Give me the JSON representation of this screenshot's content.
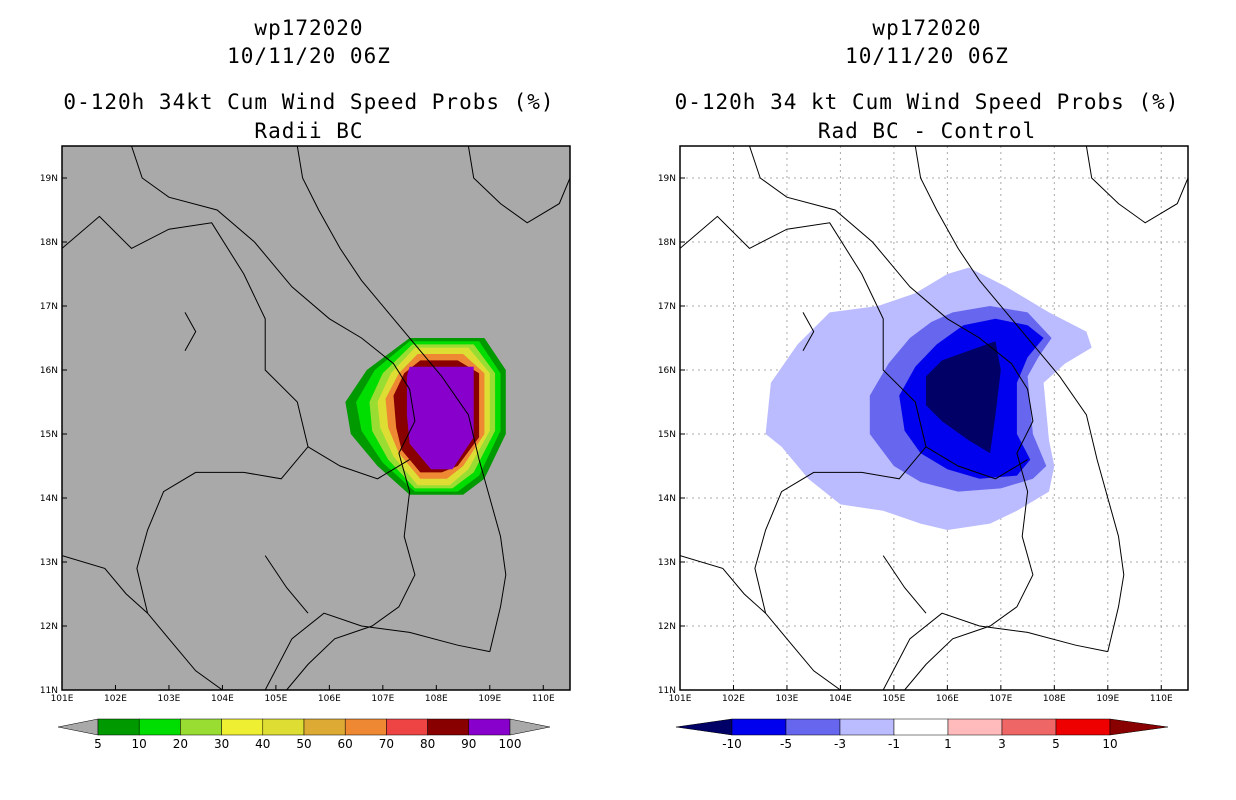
{
  "panels": [
    {
      "storm": "wp172020",
      "datetime": "10/11/20 06Z",
      "title": "0-120h 34kt Cum Wind Speed Probs (%)",
      "subtitle": "Radii BC",
      "background": "#a9a9a9",
      "lon_labels": [
        "101E",
        "102E",
        "103E",
        "104E",
        "105E",
        "106E",
        "107E",
        "108E",
        "109E",
        "110E"
      ],
      "lat_labels": [
        "11N",
        "12N",
        "13N",
        "14N",
        "15N",
        "16N",
        "17N",
        "18N",
        "19N"
      ],
      "colorbar": {
        "colors": [
          "#009900",
          "#00dd00",
          "#99dd33",
          "#eeee33",
          "#dddd33",
          "#ddaa33",
          "#ee8833",
          "#ee4444",
          "#880000",
          "#8800cc"
        ],
        "labels": [
          "5",
          "10",
          "20",
          "30",
          "40",
          "50",
          "60",
          "70",
          "80",
          "90",
          "100"
        ]
      }
    },
    {
      "storm": "wp172020",
      "datetime": "10/11/20 06Z",
      "title": "0-120h 34 kt Cum Wind Speed Probs (%)",
      "subtitle": "Rad BC - Control",
      "background": "#ffffff",
      "lon_labels": [
        "101E",
        "102E",
        "103E",
        "104E",
        "105E",
        "106E",
        "107E",
        "108E",
        "109E",
        "110E"
      ],
      "lat_labels": [
        "11N",
        "12N",
        "13N",
        "14N",
        "15N",
        "16N",
        "17N",
        "18N",
        "19N"
      ],
      "colorbar": {
        "colors": [
          "#000066",
          "#0000ee",
          "#6666ee",
          "#bbbbff",
          "#ffffff",
          "#ffbbbb",
          "#ee6666",
          "#ee0000",
          "#880000"
        ],
        "labels": [
          "-10",
          "-5",
          "-3",
          "-1",
          "1",
          "3",
          "5",
          "10"
        ]
      }
    }
  ],
  "chart_data": [
    {
      "type": "heatmap",
      "title": "0-120h 34kt Cum Wind Speed Probs (%)",
      "subtitle": "Radii BC",
      "xlim": [
        101,
        110.5
      ],
      "ylim": [
        11,
        19.5
      ],
      "contour_levels": [
        5,
        10,
        20,
        30,
        40,
        50,
        60,
        70,
        80,
        90,
        100
      ],
      "contours": [
        {
          "level": 5,
          "poly": [
            [
              107.5,
              16.5
            ],
            [
              108.9,
              16.5
            ],
            [
              109.3,
              16.0
            ],
            [
              109.3,
              15.0
            ],
            [
              108.9,
              14.3
            ],
            [
              108.5,
              14.05
            ],
            [
              107.5,
              14.05
            ],
            [
              106.9,
              14.5
            ],
            [
              106.4,
              15.0
            ],
            [
              106.3,
              15.5
            ],
            [
              106.7,
              16.0
            ]
          ]
        },
        {
          "level": 10,
          "poly": [
            [
              107.5,
              16.45
            ],
            [
              108.8,
              16.45
            ],
            [
              109.2,
              15.95
            ],
            [
              109.2,
              15.05
            ],
            [
              108.8,
              14.35
            ],
            [
              108.4,
              14.1
            ],
            [
              107.6,
              14.1
            ],
            [
              107.0,
              14.55
            ],
            [
              106.6,
              15.05
            ],
            [
              106.5,
              15.5
            ],
            [
              106.85,
              16.0
            ]
          ]
        },
        {
          "level": 20,
          "poly": [
            [
              107.55,
              16.4
            ],
            [
              108.7,
              16.4
            ],
            [
              109.1,
              15.95
            ],
            [
              109.1,
              15.05
            ],
            [
              108.7,
              14.4
            ],
            [
              108.3,
              14.15
            ],
            [
              107.6,
              14.15
            ],
            [
              107.1,
              14.6
            ],
            [
              106.8,
              15.05
            ],
            [
              106.75,
              15.5
            ],
            [
              107.0,
              15.95
            ]
          ]
        },
        {
          "level": 40,
          "poly": [
            [
              107.6,
              16.35
            ],
            [
              108.6,
              16.35
            ],
            [
              109.0,
              15.95
            ],
            [
              109.0,
              15.05
            ],
            [
              108.6,
              14.45
            ],
            [
              108.25,
              14.2
            ],
            [
              107.65,
              14.2
            ],
            [
              107.2,
              14.65
            ],
            [
              106.95,
              15.1
            ],
            [
              106.9,
              15.5
            ],
            [
              107.15,
              15.95
            ]
          ]
        },
        {
          "level": 60,
          "poly": [
            [
              107.65,
              16.25
            ],
            [
              108.5,
              16.25
            ],
            [
              108.9,
              15.95
            ],
            [
              108.9,
              15.0
            ],
            [
              108.5,
              14.5
            ],
            [
              108.2,
              14.3
            ],
            [
              107.7,
              14.3
            ],
            [
              107.3,
              14.7
            ],
            [
              107.1,
              15.1
            ],
            [
              107.05,
              15.55
            ],
            [
              107.3,
              15.95
            ]
          ]
        },
        {
          "level": 80,
          "poly": [
            [
              107.7,
              16.15
            ],
            [
              108.4,
              16.15
            ],
            [
              108.8,
              15.95
            ],
            [
              108.8,
              14.95
            ],
            [
              108.4,
              14.5
            ],
            [
              108.1,
              14.4
            ],
            [
              107.7,
              14.4
            ],
            [
              107.35,
              14.75
            ],
            [
              107.25,
              15.1
            ],
            [
              107.2,
              15.6
            ],
            [
              107.4,
              15.95
            ]
          ]
        },
        {
          "level": 90,
          "poly": [
            [
              107.5,
              16.05
            ],
            [
              108.7,
              16.05
            ],
            [
              108.7,
              14.95
            ],
            [
              108.3,
              14.45
            ],
            [
              107.9,
              14.45
            ],
            [
              107.5,
              14.85
            ],
            [
              107.45,
              15.3
            ],
            [
              107.45,
              15.9
            ]
          ]
        }
      ]
    },
    {
      "type": "heatmap",
      "title": "0-120h 34 kt Cum Wind Speed Probs (%)",
      "subtitle": "Rad BC - Control",
      "xlim": [
        101,
        110.5
      ],
      "ylim": [
        11,
        19.5
      ],
      "contour_levels": [
        -10,
        -5,
        -3,
        -1,
        1,
        3,
        5,
        10
      ],
      "contours": [
        {
          "level": -1,
          "poly": [
            [
              106.4,
              17.6
            ],
            [
              107.1,
              17.3
            ],
            [
              107.9,
              16.9
            ],
            [
              108.6,
              16.6
            ],
            [
              108.7,
              16.35
            ],
            [
              108.2,
              16.1
            ],
            [
              107.8,
              15.8
            ],
            [
              107.9,
              14.9
            ],
            [
              108.0,
              14.5
            ],
            [
              107.9,
              14.1
            ],
            [
              107.3,
              13.8
            ],
            [
              106.8,
              13.6
            ],
            [
              106.0,
              13.5
            ],
            [
              105.5,
              13.6
            ],
            [
              104.8,
              13.8
            ],
            [
              104.0,
              13.9
            ],
            [
              103.4,
              14.3
            ],
            [
              102.9,
              14.8
            ],
            [
              102.6,
              15.0
            ],
            [
              102.7,
              15.8
            ],
            [
              103.2,
              16.4
            ],
            [
              103.8,
              16.9
            ],
            [
              104.7,
              17.0
            ],
            [
              105.4,
              17.2
            ],
            [
              106.0,
              17.5
            ]
          ]
        },
        {
          "level": -3,
          "poly": [
            [
              106.1,
              16.9
            ],
            [
              106.8,
              17.0
            ],
            [
              107.5,
              16.9
            ],
            [
              107.95,
              16.5
            ],
            [
              107.7,
              16.2
            ],
            [
              107.5,
              15.9
            ],
            [
              107.6,
              15.0
            ],
            [
              107.85,
              14.5
            ],
            [
              107.6,
              14.3
            ],
            [
              107.0,
              14.15
            ],
            [
              106.2,
              14.1
            ],
            [
              105.5,
              14.25
            ],
            [
              105.0,
              14.5
            ],
            [
              104.55,
              15.0
            ],
            [
              104.55,
              15.6
            ],
            [
              104.9,
              16.1
            ],
            [
              105.3,
              16.5
            ],
            [
              105.7,
              16.75
            ]
          ]
        },
        {
          "level": -5,
          "poly": [
            [
              106.3,
              16.7
            ],
            [
              106.9,
              16.8
            ],
            [
              107.5,
              16.7
            ],
            [
              107.8,
              16.5
            ],
            [
              107.5,
              16.2
            ],
            [
              107.3,
              15.8
            ],
            [
              107.3,
              15.0
            ],
            [
              107.55,
              14.6
            ],
            [
              107.3,
              14.35
            ],
            [
              106.6,
              14.3
            ],
            [
              106.0,
              14.45
            ],
            [
              105.5,
              14.7
            ],
            [
              105.2,
              15.05
            ],
            [
              105.1,
              15.6
            ],
            [
              105.4,
              16.05
            ],
            [
              105.8,
              16.4
            ]
          ]
        },
        {
          "level": -10,
          "poly": [
            [
              106.9,
              16.45
            ],
            [
              107.0,
              16.0
            ],
            [
              106.9,
              15.3
            ],
            [
              106.8,
              14.7
            ],
            [
              106.4,
              14.9
            ],
            [
              105.9,
              15.2
            ],
            [
              105.6,
              15.45
            ],
            [
              105.6,
              15.9
            ],
            [
              105.9,
              16.15
            ],
            [
              106.4,
              16.3
            ]
          ]
        }
      ]
    }
  ]
}
